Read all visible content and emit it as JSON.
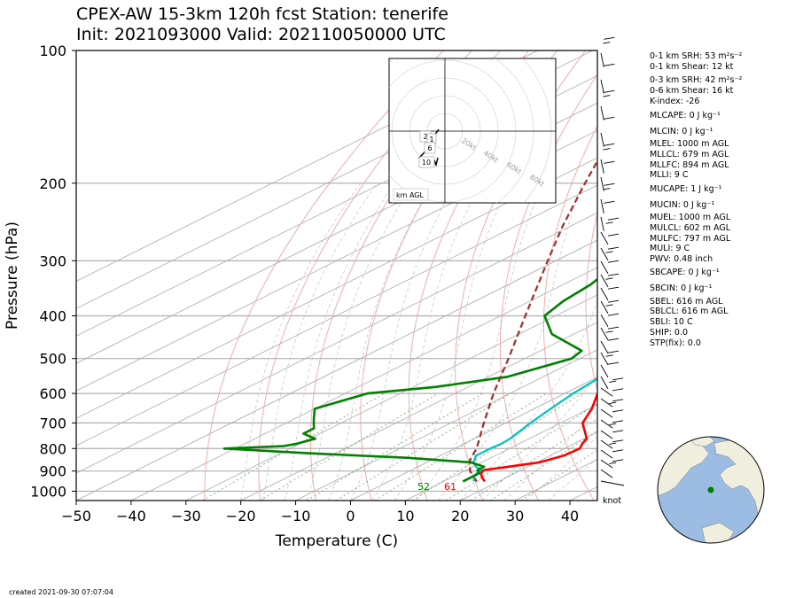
{
  "title_line1": "CPEX-AW 15-3km  120h fcst  Station: tenerife",
  "title_line2": "Init: 2021093000  Valid: 202110050000 UTC",
  "created": "created 2021-09-30 07:07:04",
  "knot_label": "knot",
  "indices": [
    {
      "text": "0-1 km SRH: 53 m²s⁻²"
    },
    {
      "text": "0-1 km Shear: 12 kt"
    },
    {
      "text": "0-3 km SRH: 42 m²s⁻²"
    },
    {
      "text": "0-6 km Shear: 16 kt"
    },
    {
      "text": "K-index: -26"
    },
    {
      "text": "MLCAPE: 0 J kg⁻¹"
    },
    {
      "text": "MLCIN: 0 J kg⁻¹"
    },
    {
      "text": "MLEL: 1000 m AGL"
    },
    {
      "text": "MLLCL: 679 m AGL"
    },
    {
      "text": "MLLFC: 894 m AGL"
    },
    {
      "text": "MLLI: 9 C"
    },
    {
      "text": "MUCAPE: 1 J kg⁻¹"
    },
    {
      "text": "MUCIN: 0 J kg⁻¹"
    },
    {
      "text": "MUEL: 1000 m AGL"
    },
    {
      "text": "MULCL: 602 m AGL"
    },
    {
      "text": "MULFC: 797 m AGL"
    },
    {
      "text": "MULI: 9 C"
    },
    {
      "text": "PWV: 0.48 inch"
    },
    {
      "text": "SBCAPE: 0 J kg⁻¹"
    },
    {
      "text": "SBCIN: 0 J kg⁻¹"
    },
    {
      "text": "SBEL: 616 m AGL"
    },
    {
      "text": "SBLCL: 616 m AGL"
    },
    {
      "text": "SBLI: 10 C"
    },
    {
      "text": "SHIP: 0.0"
    },
    {
      "text": "STP(fix): 0.0"
    }
  ],
  "chart_data": {
    "type": "line",
    "subtype": "skew-T log-p",
    "xlabel": "Temperature (C)",
    "ylabel": "Pressure (hPa)",
    "xlim": [
      -50,
      45
    ],
    "ylim": [
      1050,
      100
    ],
    "y_scale": "log",
    "x_ticks": [
      -50,
      -40,
      -30,
      -20,
      -10,
      0,
      10,
      20,
      30,
      40
    ],
    "x_tick_labels": [
      "−50",
      "−40",
      "−30",
      "−20",
      "−10",
      "0",
      "10",
      "20",
      "30",
      "40"
    ],
    "y_ticks": [
      1000,
      900,
      800,
      700,
      600,
      500,
      400,
      300,
      200,
      100
    ],
    "y_tick_labels": [
      "1000",
      "900",
      "800",
      "700",
      "600",
      "500",
      "400",
      "300",
      "200",
      "100"
    ],
    "grid": true,
    "colors": {
      "temperature": "#ff0000",
      "dewpoint": "#008000",
      "virtual_temperature": "#00c0c0",
      "parcel": "#a52a2a",
      "dry_adiabat": "#f4a6a0",
      "moist_adiabat": "#c0c0c0",
      "mixing_ratio": "#66aa66",
      "isotherm": "#aaaaaa"
    },
    "series": [
      {
        "key": "temperature",
        "points": [
          [
            950,
            17.5
          ],
          [
            930,
            15.5
          ],
          [
            910,
            13.8
          ],
          [
            895,
            13.2
          ],
          [
            880,
            16.5
          ],
          [
            860,
            20.5
          ],
          [
            830,
            22.5
          ],
          [
            800,
            22.8
          ],
          [
            780,
            21.5
          ],
          [
            760,
            20.5
          ],
          [
            700,
            14.0
          ],
          [
            650,
            10.5
          ],
          [
            600,
            6.0
          ],
          [
            550,
            2.0
          ],
          [
            500,
            -3.0
          ],
          [
            450,
            -8.5
          ],
          [
            400,
            -13.5
          ],
          [
            350,
            -21.0
          ],
          [
            300,
            -29.5
          ],
          [
            250,
            -39.5
          ],
          [
            200,
            -49.0
          ],
          [
            170,
            -54.5
          ],
          [
            150,
            -59.5
          ],
          [
            130,
            -63.0
          ],
          [
            110,
            -66.0
          ],
          [
            100,
            -69.0
          ]
        ]
      },
      {
        "key": "virtual_temperature",
        "points": [
          [
            950,
            15.5
          ],
          [
            930,
            14.0
          ],
          [
            910,
            13.0
          ],
          [
            895,
            12.8
          ],
          [
            880,
            10.5
          ],
          [
            860,
            8.5
          ],
          [
            830,
            6.5
          ],
          [
            800,
            6.5
          ],
          [
            780,
            6.8
          ],
          [
            760,
            6.5
          ],
          [
            700,
            4.5
          ],
          [
            650,
            3.0
          ],
          [
            600,
            1.5
          ],
          [
            550,
            0.5
          ],
          [
            500,
            -2.5
          ],
          [
            450,
            -7.0
          ],
          [
            400,
            -12.5
          ],
          [
            350,
            -20.0
          ],
          [
            300,
            -29.0
          ],
          [
            250,
            -39.0
          ],
          [
            200,
            -48.5
          ],
          [
            170,
            -54.0
          ],
          [
            150,
            -59.0
          ],
          [
            130,
            -63.0
          ],
          [
            110,
            -66.0
          ],
          [
            100,
            -69.0
          ]
        ]
      },
      {
        "key": "dewpoint",
        "points": [
          [
            950,
            13.5
          ],
          [
            930,
            13.5
          ],
          [
            910,
            13.5
          ],
          [
            895,
            12.0
          ],
          [
            880,
            12.0
          ],
          [
            860,
            8.0
          ],
          [
            840,
            -5.0
          ],
          [
            820,
            -25.0
          ],
          [
            800,
            -42.0
          ],
          [
            790,
            -32.0
          ],
          [
            780,
            -30.5
          ],
          [
            760,
            -29.0
          ],
          [
            740,
            -33.0
          ],
          [
            720,
            -33.0
          ],
          [
            700,
            -35.0
          ],
          [
            680,
            -37.0
          ],
          [
            650,
            -40.0
          ],
          [
            600,
            -36.0
          ],
          [
            580,
            -26.0
          ],
          [
            550,
            -16.5
          ],
          [
            500,
            -11.5
          ],
          [
            480,
            -12.5
          ],
          [
            440,
            -24.0
          ],
          [
            400,
            -32.0
          ],
          [
            370,
            -34.0
          ],
          [
            340,
            -35.0
          ],
          [
            320,
            -36.5
          ],
          [
            300,
            -31.0
          ],
          [
            270,
            -37.0
          ],
          [
            250,
            -37.5
          ],
          [
            230,
            -37.5
          ],
          [
            200,
            -42.5
          ],
          [
            170,
            -46.5
          ],
          [
            150,
            -47.5
          ],
          [
            130,
            -46.0
          ],
          [
            115,
            -46.0
          ],
          [
            100,
            -47.0
          ]
        ]
      },
      {
        "key": "parcel",
        "points": [
          [
            950,
            16.0
          ],
          [
            900,
            11.0
          ],
          [
            850,
            7.0
          ],
          [
            800,
            4.0
          ],
          [
            700,
            -4.0
          ],
          [
            600,
            -13.0
          ],
          [
            500,
            -23.0
          ],
          [
            400,
            -35.5
          ],
          [
            300,
            -51.5
          ],
          [
            250,
            -61.5
          ],
          [
            200,
            -73.0
          ],
          [
            150,
            -87.5
          ],
          [
            130,
            -94.5
          ]
        ]
      }
    ],
    "surface_labels": {
      "dewpoint": "52",
      "temperature": "61"
    },
    "hodograph": {
      "label": "km AGL",
      "ring_labels": [
        "20kt",
        "40kt",
        "60kt",
        "80kt"
      ],
      "height_labels": [
        "2",
        "1",
        "6",
        "10"
      ]
    },
    "wind_barbs": {
      "units": "knot"
    }
  },
  "globe": {
    "land": "#f0efdf",
    "ocean": "#9cbce4",
    "marker": "#008000"
  }
}
